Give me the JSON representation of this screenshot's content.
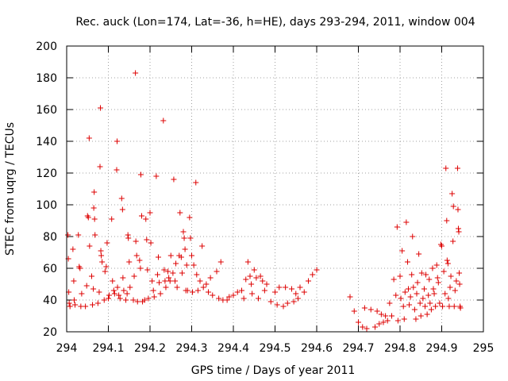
{
  "chart_data": {
    "type": "scatter",
    "title": "Rec. auck (Lon=174, Lat=-36, h=HE), days 293-294, 2011, window 004",
    "xlabel": "GPS time / Days of year 2011",
    "ylabel": "STEC from uqrg / TECUs",
    "xlim": [
      294,
      295
    ],
    "ylim": [
      20,
      200
    ],
    "xticks": [
      294,
      294.1,
      294.2,
      294.3,
      294.4,
      294.5,
      294.6,
      294.7,
      294.8,
      294.9,
      295
    ],
    "xtick_labels": [
      "294",
      "294.1",
      "294.2",
      "294.3",
      "294.4",
      "294.5",
      "294.6",
      "294.7",
      "294.8",
      "294.9",
      "295"
    ],
    "yticks": [
      20,
      40,
      60,
      80,
      100,
      120,
      140,
      160,
      180,
      200
    ],
    "ytick_labels": [
      "20",
      "40",
      "60",
      "80",
      "100",
      "120",
      "140",
      "160",
      "180",
      "200"
    ],
    "marker": "+",
    "color": "#dd0000",
    "series": [
      {
        "name": "STEC",
        "points": [
          [
            294.003,
            81
          ],
          [
            294.004,
            66
          ],
          [
            294.005,
            45
          ],
          [
            294.006,
            38
          ],
          [
            294.008,
            36
          ],
          [
            294.015,
            72
          ],
          [
            294.017,
            52
          ],
          [
            294.018,
            40
          ],
          [
            294.02,
            37
          ],
          [
            294.028,
            81
          ],
          [
            294.03,
            61
          ],
          [
            294.032,
            60
          ],
          [
            294.034,
            36
          ],
          [
            294.036,
            44
          ],
          [
            294.045,
            36
          ],
          [
            294.048,
            49
          ],
          [
            294.05,
            93
          ],
          [
            294.052,
            92
          ],
          [
            294.054,
            142
          ],
          [
            294.055,
            74
          ],
          [
            294.06,
            55
          ],
          [
            294.062,
            37
          ],
          [
            294.064,
            47
          ],
          [
            294.065,
            98
          ],
          [
            294.066,
            108
          ],
          [
            294.067,
            91
          ],
          [
            294.068,
            81
          ],
          [
            294.075,
            38
          ],
          [
            294.078,
            45
          ],
          [
            294.08,
            124
          ],
          [
            294.081,
            161
          ],
          [
            294.082,
            71
          ],
          [
            294.083,
            68
          ],
          [
            294.085,
            64
          ],
          [
            294.09,
            40
          ],
          [
            294.092,
            58
          ],
          [
            294.095,
            61
          ],
          [
            294.097,
            76
          ],
          [
            294.1,
            41
          ],
          [
            294.102,
            43
          ],
          [
            294.108,
            91
          ],
          [
            294.11,
            52
          ],
          [
            294.113,
            46
          ],
          [
            294.115,
            44
          ],
          [
            294.12,
            122
          ],
          [
            294.121,
            140
          ],
          [
            294.122,
            48
          ],
          [
            294.125,
            43
          ],
          [
            294.128,
            41
          ],
          [
            294.132,
            104
          ],
          [
            294.134,
            97
          ],
          [
            294.135,
            54
          ],
          [
            294.137,
            46
          ],
          [
            294.142,
            40
          ],
          [
            294.145,
            44
          ],
          [
            294.147,
            81
          ],
          [
            294.148,
            79
          ],
          [
            294.15,
            64
          ],
          [
            294.152,
            48
          ],
          [
            294.16,
            40
          ],
          [
            294.162,
            55
          ],
          [
            294.165,
            183
          ],
          [
            294.166,
            77
          ],
          [
            294.168,
            68
          ],
          [
            294.17,
            39
          ],
          [
            294.175,
            65
          ],
          [
            294.177,
            60
          ],
          [
            294.178,
            119
          ],
          [
            294.18,
            93
          ],
          [
            294.182,
            39
          ],
          [
            294.187,
            40
          ],
          [
            294.19,
            91
          ],
          [
            294.192,
            78
          ],
          [
            294.194,
            59
          ],
          [
            294.196,
            41
          ],
          [
            294.2,
            95
          ],
          [
            294.202,
            76
          ],
          [
            294.205,
            52
          ],
          [
            294.208,
            46
          ],
          [
            294.21,
            42
          ],
          [
            294.215,
            118
          ],
          [
            294.218,
            56
          ],
          [
            294.22,
            67
          ],
          [
            294.222,
            51
          ],
          [
            294.225,
            44
          ],
          [
            294.232,
            153
          ],
          [
            294.234,
            59
          ],
          [
            294.236,
            52
          ],
          [
            294.238,
            48
          ],
          [
            294.243,
            58
          ],
          [
            294.245,
            54
          ],
          [
            294.248,
            52
          ],
          [
            294.25,
            68
          ],
          [
            294.255,
            57
          ],
          [
            294.257,
            116
          ],
          [
            294.26,
            52
          ],
          [
            294.262,
            63
          ],
          [
            294.265,
            48
          ],
          [
            294.27,
            68
          ],
          [
            294.272,
            95
          ],
          [
            294.275,
            67
          ],
          [
            294.277,
            57
          ],
          [
            294.28,
            83
          ],
          [
            294.282,
            79
          ],
          [
            294.284,
            72
          ],
          [
            294.286,
            46
          ],
          [
            294.288,
            62
          ],
          [
            294.29,
            46
          ],
          [
            294.295,
            92
          ],
          [
            294.297,
            79
          ],
          [
            294.3,
            68
          ],
          [
            294.302,
            45
          ],
          [
            294.305,
            62
          ],
          [
            294.31,
            114
          ],
          [
            294.312,
            56
          ],
          [
            294.315,
            46
          ],
          [
            294.32,
            52
          ],
          [
            294.325,
            74
          ],
          [
            294.328,
            48
          ],
          [
            294.335,
            50
          ],
          [
            294.34,
            45
          ],
          [
            294.345,
            54
          ],
          [
            294.35,
            43
          ],
          [
            294.36,
            58
          ],
          [
            294.365,
            41
          ],
          [
            294.37,
            64
          ],
          [
            294.375,
            40
          ],
          [
            294.385,
            40
          ],
          [
            294.39,
            42
          ],
          [
            294.4,
            43
          ],
          [
            294.41,
            45
          ],
          [
            294.42,
            46
          ],
          [
            294.425,
            41
          ],
          [
            294.43,
            53
          ],
          [
            294.435,
            64
          ],
          [
            294.44,
            55
          ],
          [
            294.443,
            50
          ],
          [
            294.445,
            44
          ],
          [
            294.45,
            59
          ],
          [
            294.455,
            54
          ],
          [
            294.46,
            41
          ],
          [
            294.465,
            55
          ],
          [
            294.47,
            52
          ],
          [
            294.475,
            46
          ],
          [
            294.48,
            50
          ],
          [
            294.49,
            39
          ],
          [
            294.5,
            45
          ],
          [
            294.505,
            37
          ],
          [
            294.51,
            48
          ],
          [
            294.52,
            36
          ],
          [
            294.525,
            48
          ],
          [
            294.53,
            38
          ],
          [
            294.54,
            47
          ],
          [
            294.545,
            39
          ],
          [
            294.55,
            44
          ],
          [
            294.555,
            41
          ],
          [
            294.56,
            48
          ],
          [
            294.57,
            45
          ],
          [
            294.58,
            52
          ],
          [
            294.59,
            56
          ],
          [
            294.6,
            59
          ],
          [
            294.68,
            42
          ],
          [
            294.69,
            33
          ],
          [
            294.7,
            26
          ],
          [
            294.71,
            23
          ],
          [
            294.715,
            35
          ],
          [
            294.72,
            22
          ],
          [
            294.73,
            34
          ],
          [
            294.74,
            23
          ],
          [
            294.745,
            33
          ],
          [
            294.75,
            25
          ],
          [
            294.755,
            31
          ],
          [
            294.76,
            26
          ],
          [
            294.765,
            30
          ],
          [
            294.77,
            27
          ],
          [
            294.775,
            38
          ],
          [
            294.78,
            30
          ],
          [
            294.785,
            53
          ],
          [
            294.79,
            43
          ],
          [
            294.793,
            86
          ],
          [
            294.795,
            27
          ],
          [
            294.8,
            55
          ],
          [
            294.802,
            41
          ],
          [
            294.805,
            71
          ],
          [
            294.808,
            36
          ],
          [
            294.81,
            28
          ],
          [
            294.812,
            45
          ],
          [
            294.815,
            89
          ],
          [
            294.818,
            64
          ],
          [
            294.82,
            47
          ],
          [
            294.822,
            37
          ],
          [
            294.825,
            42
          ],
          [
            294.828,
            56
          ],
          [
            294.83,
            80
          ],
          [
            294.832,
            48
          ],
          [
            294.835,
            34
          ],
          [
            294.838,
            28
          ],
          [
            294.84,
            44
          ],
          [
            294.842,
            51
          ],
          [
            294.845,
            69
          ],
          [
            294.848,
            38
          ],
          [
            294.85,
            30
          ],
          [
            294.852,
            57
          ],
          [
            294.855,
            41
          ],
          [
            294.858,
            47
          ],
          [
            294.86,
            36
          ],
          [
            294.862,
            56
          ],
          [
            294.865,
            31
          ],
          [
            294.868,
            43
          ],
          [
            294.87,
            53
          ],
          [
            294.872,
            38
          ],
          [
            294.875,
            34
          ],
          [
            294.878,
            60
          ],
          [
            294.88,
            47
          ],
          [
            294.882,
            44
          ],
          [
            294.885,
            36
          ],
          [
            294.888,
            62
          ],
          [
            294.89,
            54
          ],
          [
            294.892,
            51
          ],
          [
            294.895,
            38
          ],
          [
            294.898,
            75
          ],
          [
            294.9,
            74
          ],
          [
            294.902,
            36
          ],
          [
            294.905,
            58
          ],
          [
            294.908,
            44
          ],
          [
            294.91,
            123
          ],
          [
            294.912,
            90
          ],
          [
            294.913,
            65
          ],
          [
            294.915,
            63
          ],
          [
            294.916,
            41
          ],
          [
            294.918,
            36
          ],
          [
            294.92,
            48
          ],
          [
            294.922,
            55
          ],
          [
            294.925,
            107
          ],
          [
            294.927,
            77
          ],
          [
            294.928,
            99
          ],
          [
            294.93,
            36
          ],
          [
            294.932,
            46
          ],
          [
            294.935,
            52
          ],
          [
            294.938,
            123
          ],
          [
            294.939,
            97
          ],
          [
            294.94,
            85
          ],
          [
            294.941,
            83
          ],
          [
            294.942,
            57
          ],
          [
            294.943,
            50
          ],
          [
            294.944,
            36
          ],
          [
            294.945,
            35
          ]
        ]
      }
    ]
  }
}
